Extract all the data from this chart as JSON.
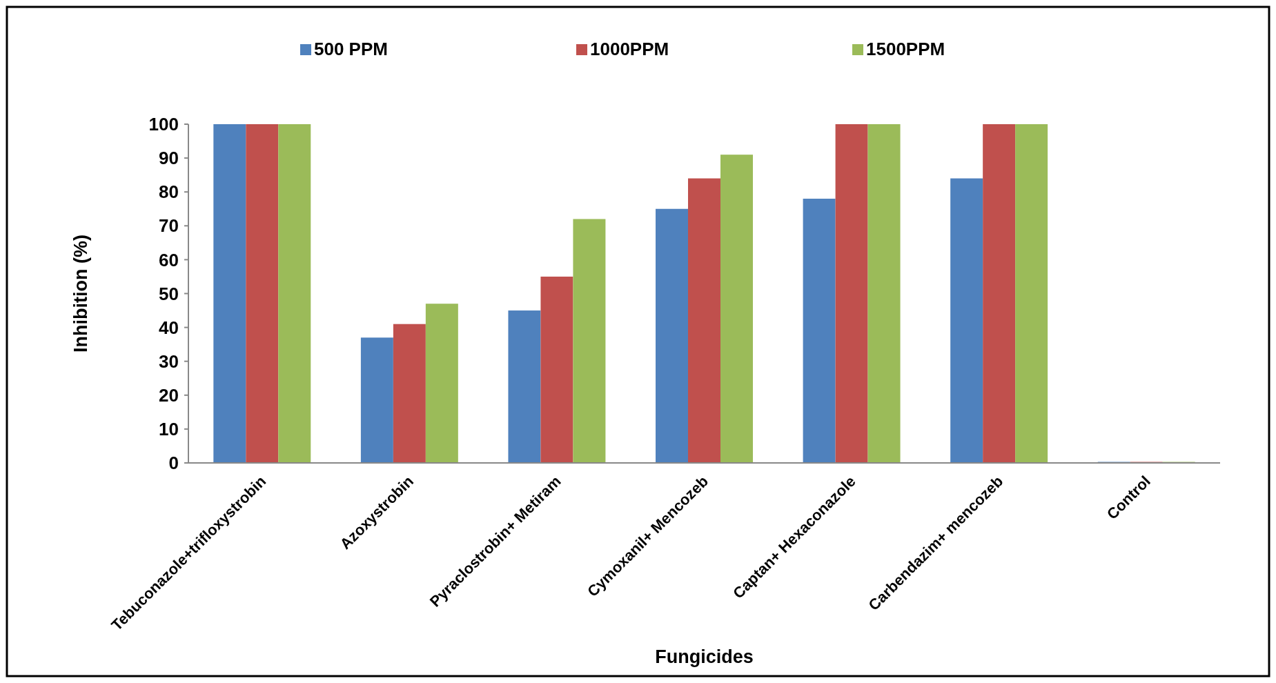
{
  "chart_data": {
    "type": "bar",
    "xlabel": "Fungicides",
    "ylabel": "Inhibition (%)",
    "categories": [
      "Tebuconazole+trifloxystrobin",
      "Azoxystrobin",
      "Pyraclostrobin+ Metiram",
      "Cymoxanil+ Mencozeb",
      "Captan+ Hexaconazole",
      "Carbendazim+ mencozeb",
      "Control"
    ],
    "series": [
      {
        "name": "500 PPM",
        "color": "#4f81bd",
        "values": [
          100,
          37,
          45,
          75,
          78,
          84,
          0
        ]
      },
      {
        "name": "1000PPM",
        "color": "#c0504d",
        "values": [
          100,
          41,
          55,
          84,
          100,
          100,
          0
        ]
      },
      {
        "name": "1500PPM",
        "color": "#9bbb59",
        "values": [
          100,
          47,
          72,
          91,
          100,
          100,
          0
        ]
      }
    ],
    "ylim": [
      0,
      100
    ],
    "yticks": [
      0,
      10,
      20,
      30,
      40,
      50,
      60,
      70,
      80,
      90,
      100
    ],
    "grid": false,
    "legend": "top"
  }
}
